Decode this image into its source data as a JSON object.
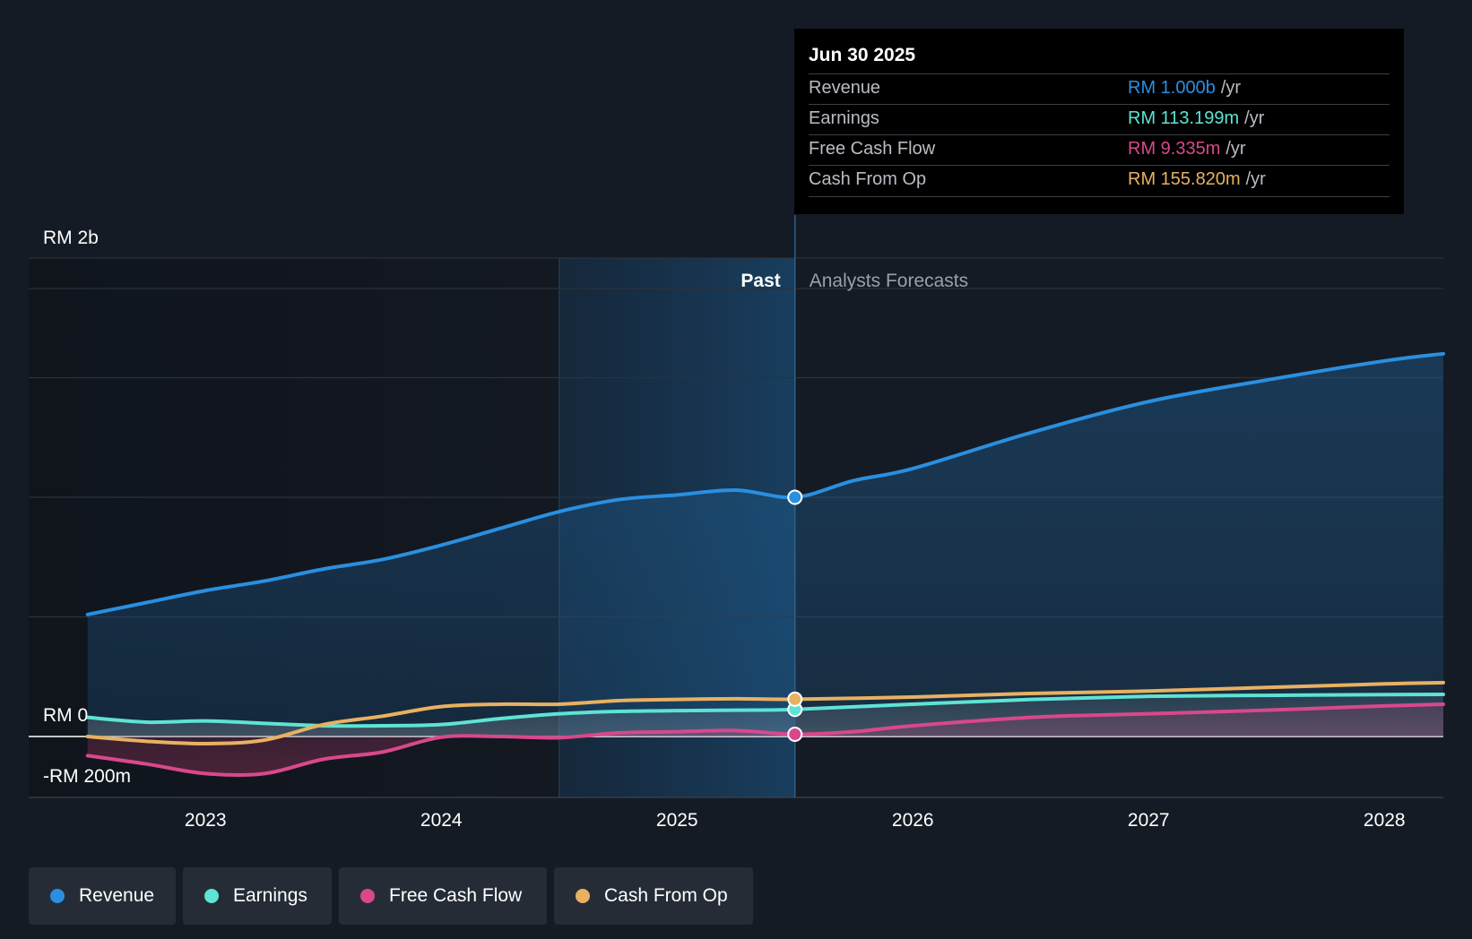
{
  "chart_data": {
    "type": "line",
    "x_axis": {
      "ticks": [
        "2023",
        "2024",
        "2025",
        "2026",
        "2027",
        "2028"
      ],
      "tick_values": [
        2023,
        2024,
        2025,
        2026,
        2027,
        2028
      ],
      "range": [
        2022.25,
        2028.25
      ]
    },
    "y_axis": {
      "range_m": [
        -200,
        2000
      ],
      "labels": [
        {
          "text": "RM 2b",
          "value": 2000
        },
        {
          "text": "RM 0",
          "value": 0
        },
        {
          "text": "-RM 200m",
          "value": -200
        }
      ],
      "gridlines_m": [
        0,
        500,
        1000,
        1500,
        2000
      ]
    },
    "divider_x": 2025.5,
    "past_highlight_start": 2024.5,
    "region_labels": {
      "past": "Past",
      "forecast": "Analysts Forecasts"
    },
    "series": [
      {
        "name": "Revenue",
        "color": "#2a8fe0",
        "fill": true,
        "points": [
          [
            2022.5,
            510
          ],
          [
            2022.75,
            560
          ],
          [
            2023.0,
            610
          ],
          [
            2023.25,
            650
          ],
          [
            2023.5,
            700
          ],
          [
            2023.75,
            740
          ],
          [
            2024.0,
            800
          ],
          [
            2024.25,
            870
          ],
          [
            2024.5,
            940
          ],
          [
            2024.75,
            990
          ],
          [
            2025.0,
            1010
          ],
          [
            2025.25,
            1030
          ],
          [
            2025.5,
            1000
          ],
          [
            2025.75,
            1070
          ],
          [
            2026.0,
            1120
          ],
          [
            2026.5,
            1270
          ],
          [
            2027.0,
            1400
          ],
          [
            2027.5,
            1490
          ],
          [
            2028.0,
            1570
          ],
          [
            2028.25,
            1600
          ]
        ]
      },
      {
        "name": "Earnings",
        "color": "#5ee3d4",
        "fill": false,
        "points": [
          [
            2022.5,
            80
          ],
          [
            2022.75,
            60
          ],
          [
            2023.0,
            65
          ],
          [
            2023.25,
            55
          ],
          [
            2023.5,
            45
          ],
          [
            2023.75,
            45
          ],
          [
            2024.0,
            50
          ],
          [
            2024.25,
            75
          ],
          [
            2024.5,
            95
          ],
          [
            2024.75,
            105
          ],
          [
            2025.0,
            108
          ],
          [
            2025.25,
            110
          ],
          [
            2025.5,
            113.199
          ],
          [
            2026.0,
            135
          ],
          [
            2026.5,
            155
          ],
          [
            2027.0,
            168
          ],
          [
            2027.5,
            172
          ],
          [
            2028.0,
            175
          ],
          [
            2028.25,
            176
          ]
        ]
      },
      {
        "name": "Free Cash Flow",
        "color": "#d9488c",
        "fill": false,
        "points": [
          [
            2022.5,
            -80
          ],
          [
            2022.75,
            -115
          ],
          [
            2023.0,
            -155
          ],
          [
            2023.25,
            -155
          ],
          [
            2023.5,
            -95
          ],
          [
            2023.75,
            -65
          ],
          [
            2024.0,
            -3
          ],
          [
            2024.25,
            0
          ],
          [
            2024.5,
            -5
          ],
          [
            2024.75,
            15
          ],
          [
            2025.0,
            20
          ],
          [
            2025.25,
            25
          ],
          [
            2025.5,
            9.335
          ],
          [
            2025.75,
            20
          ],
          [
            2026.0,
            45
          ],
          [
            2026.5,
            80
          ],
          [
            2027.0,
            95
          ],
          [
            2027.5,
            110
          ],
          [
            2028.0,
            128
          ],
          [
            2028.25,
            135
          ]
        ]
      },
      {
        "name": "Cash From Op",
        "color": "#e8b161",
        "fill": false,
        "points": [
          [
            2022.5,
            0
          ],
          [
            2022.75,
            -20
          ],
          [
            2023.0,
            -30
          ],
          [
            2023.25,
            -15
          ],
          [
            2023.5,
            50
          ],
          [
            2023.75,
            85
          ],
          [
            2024.0,
            125
          ],
          [
            2024.25,
            135
          ],
          [
            2024.5,
            135
          ],
          [
            2024.75,
            150
          ],
          [
            2025.0,
            155
          ],
          [
            2025.25,
            158
          ],
          [
            2025.5,
            155.82
          ],
          [
            2026.0,
            165
          ],
          [
            2026.5,
            180
          ],
          [
            2027.0,
            190
          ],
          [
            2027.5,
            205
          ],
          [
            2028.0,
            220
          ],
          [
            2028.25,
            225
          ]
        ]
      }
    ],
    "highlight": {
      "x": 2025.5,
      "series_values": {
        "Revenue": 1000,
        "Earnings": 113.199,
        "Free Cash Flow": 9.335,
        "Cash From Op": 155.82
      }
    }
  },
  "tooltip": {
    "date": "Jun 30 2025",
    "unit": "/yr",
    "rows": [
      {
        "label": "Revenue",
        "value": "RM 1.000b",
        "color": "#2a8fe0"
      },
      {
        "label": "Earnings",
        "value": "RM 113.199m",
        "color": "#5ee3d4"
      },
      {
        "label": "Free Cash Flow",
        "value": "RM 9.335m",
        "color": "#d9488c"
      },
      {
        "label": "Cash From Op",
        "value": "RM 155.820m",
        "color": "#e8b161"
      }
    ]
  },
  "legend": [
    {
      "label": "Revenue",
      "color": "#2a8fe0"
    },
    {
      "label": "Earnings",
      "color": "#5ee3d4"
    },
    {
      "label": "Free Cash Flow",
      "color": "#d9488c"
    },
    {
      "label": "Cash From Op",
      "color": "#e8b161"
    }
  ]
}
